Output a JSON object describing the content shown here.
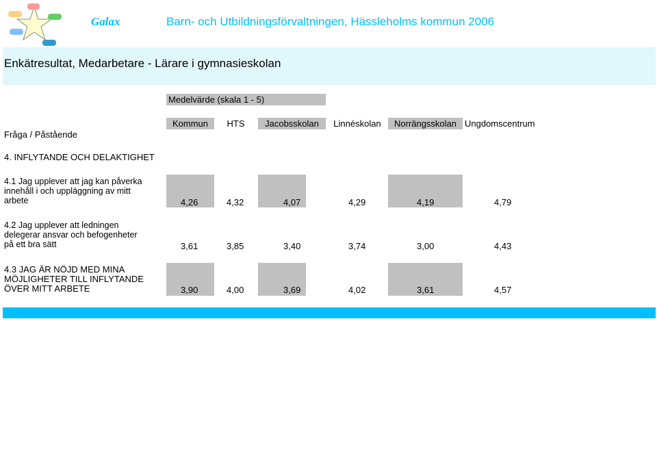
{
  "header": {
    "brand": "Galax",
    "title": "Barn- och Utbildningsförvaltningen, Hässleholms kommun 2006"
  },
  "page_title": "Enkätresultat, Medarbetare - Lärare i gymnasieskolan",
  "mean_header": "Medelvärde (skala 1 - 5)",
  "question_header": "Fråga / Påstående",
  "columns": [
    "Kommun",
    "HTS",
    "Jacobsskolan",
    "Linnéskolan",
    "Norrängsskolan",
    "Ungdomscentrum"
  ],
  "section_title": "4. INFLYTANDE OCH DELAKTIGHET",
  "questions": [
    {
      "lines": [
        "4.1 Jag upplever att jag kan påverka",
        "innehåll i och uppläggning av mitt",
        "arbete"
      ],
      "values": [
        "4,26",
        "4,32",
        "4,07",
        "4,29",
        "4,19",
        "4,79"
      ]
    },
    {
      "lines": [
        "4.2 Jag upplever att ledningen",
        "delegerar ansvar och befogenheter",
        "på ett bra sätt"
      ],
      "values": [
        "3,61",
        "3,85",
        "3,40",
        "3,74",
        "3,00",
        "4,43"
      ]
    },
    {
      "lines": [
        "4.3 JAG ÄR NÖJD MED MINA",
        "MÖJLIGHETER TILL INFLYTANDE",
        "ÖVER MITT ARBETE"
      ],
      "values": [
        "3,90",
        "4,00",
        "3,69",
        "4,02",
        "3,61",
        "4,57"
      ]
    }
  ],
  "colors": {
    "accent": "#00bfff",
    "title_band": "#e0f7fc",
    "grey": "#c0c0c0"
  }
}
